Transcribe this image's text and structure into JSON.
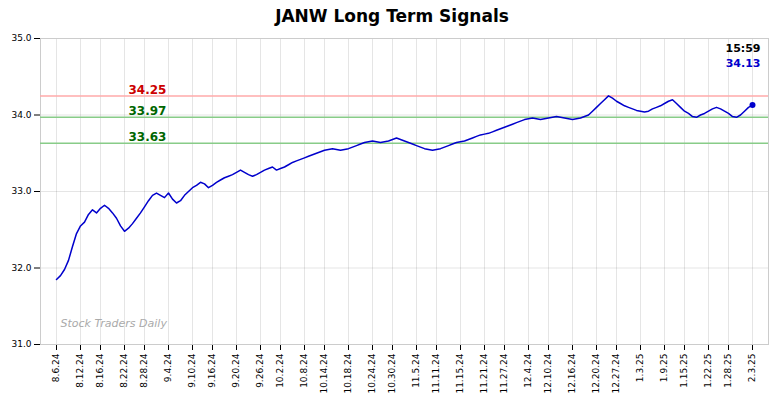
{
  "chart_data": {
    "type": "line",
    "title": "JANW Long Term Signals",
    "color": "#0000cc",
    "ylim": [
      31,
      35
    ],
    "yticks": [
      31,
      32,
      33,
      34,
      35
    ],
    "grid": true,
    "marker": "endpoint",
    "hlines": [
      {
        "y": 34.25,
        "color": "#ffaaaa",
        "text": "34.25",
        "text_color": "#cc0000"
      },
      {
        "y": 33.97,
        "color": "#88cc88",
        "text": "33.97",
        "text_color": "#006600"
      },
      {
        "y": 33.63,
        "color": "#88cc88",
        "text": "33.63",
        "text_color": "#006600"
      }
    ],
    "corner_labels": [
      {
        "text": "15:59",
        "color": "black"
      },
      {
        "text": "34.13",
        "color": "#0000cc"
      }
    ],
    "watermark": {
      "text": "Stock Traders Daily",
      "color": "#aaaaaa"
    },
    "categories": [
      "8.6.24",
      null,
      null,
      null,
      null,
      null,
      "8.12.24",
      null,
      null,
      null,
      null,
      "8.16.24",
      null,
      null,
      null,
      null,
      null,
      "8.22.24",
      null,
      null,
      null,
      null,
      "8.28.24",
      null,
      null,
      null,
      null,
      null,
      "9.4.24",
      null,
      null,
      null,
      null,
      null,
      "9.10.24",
      null,
      null,
      null,
      null,
      "9.16.24",
      null,
      null,
      null,
      null,
      null,
      "9.20.24",
      null,
      null,
      null,
      null,
      null,
      "9.26.24",
      null,
      null,
      null,
      null,
      "10.2.24",
      null,
      null,
      null,
      null,
      null,
      "10.8.24",
      null,
      null,
      null,
      null,
      "10.14.24",
      null,
      null,
      null,
      null,
      null,
      "10.18.24",
      null,
      null,
      null,
      null,
      null,
      "10.24.24",
      null,
      null,
      null,
      null,
      "10.30.24",
      null,
      null,
      null,
      null,
      null,
      "11.5.24",
      null,
      null,
      null,
      null,
      "11.11.24",
      null,
      null,
      null,
      null,
      null,
      "11.15.24",
      null,
      null,
      null,
      null,
      null,
      "11.21.24",
      null,
      null,
      null,
      null,
      "11.27.24",
      null,
      null,
      null,
      null,
      null,
      "12.4.24",
      null,
      null,
      null,
      null,
      "12.10.24",
      null,
      null,
      null,
      null,
      null,
      "12.16.24",
      null,
      null,
      null,
      null,
      null,
      "12.20.24",
      null,
      null,
      null,
      null,
      "12.27.24",
      null,
      null,
      null,
      null,
      null,
      "1.3.25",
      null,
      null,
      null,
      null,
      null,
      "1.9.25",
      null,
      null,
      null,
      null,
      "1.15.25",
      null,
      null,
      null,
      null,
      null,
      "1.22.25",
      null,
      null,
      null,
      null,
      "1.28.25",
      null,
      null,
      null,
      null,
      null,
      "2.3.25"
    ],
    "values": [
      31.85,
      31.9,
      31.98,
      32.1,
      32.28,
      32.45,
      32.55,
      32.6,
      32.7,
      32.76,
      32.72,
      32.78,
      32.82,
      32.78,
      32.72,
      32.65,
      32.55,
      32.48,
      32.52,
      32.58,
      32.65,
      32.72,
      32.8,
      32.88,
      32.95,
      32.98,
      32.95,
      32.92,
      32.98,
      32.9,
      32.85,
      32.88,
      32.95,
      33.0,
      33.05,
      33.08,
      33.12,
      33.1,
      33.05,
      33.08,
      33.12,
      33.15,
      33.18,
      33.2,
      33.22,
      33.25,
      33.28,
      33.25,
      33.22,
      33.2,
      33.22,
      33.25,
      33.28,
      33.3,
      33.32,
      33.28,
      33.3,
      33.32,
      33.35,
      33.38,
      33.4,
      33.42,
      33.44,
      33.46,
      33.48,
      33.5,
      33.52,
      33.54,
      33.55,
      33.56,
      33.55,
      33.54,
      33.55,
      33.56,
      33.58,
      33.6,
      33.62,
      33.64,
      33.65,
      33.66,
      33.65,
      33.64,
      33.65,
      33.66,
      33.68,
      33.7,
      33.68,
      33.66,
      33.64,
      33.62,
      33.6,
      33.58,
      33.56,
      33.55,
      33.54,
      33.55,
      33.56,
      33.58,
      33.6,
      33.62,
      33.64,
      33.65,
      33.66,
      33.68,
      33.7,
      33.72,
      33.74,
      33.75,
      33.76,
      33.78,
      33.8,
      33.82,
      33.84,
      33.86,
      33.88,
      33.9,
      33.92,
      33.94,
      33.95,
      33.96,
      33.95,
      33.94,
      33.95,
      33.96,
      33.97,
      33.98,
      33.97,
      33.96,
      33.95,
      33.94,
      33.95,
      33.96,
      33.98,
      34.0,
      34.05,
      34.1,
      34.15,
      34.2,
      34.25,
      34.22,
      34.18,
      34.15,
      34.12,
      34.1,
      34.08,
      34.06,
      34.05,
      34.04,
      34.05,
      34.08,
      34.1,
      34.12,
      34.15,
      34.18,
      34.2,
      34.15,
      34.1,
      34.05,
      34.02,
      33.98,
      33.97,
      34.0,
      34.02,
      34.05,
      34.08,
      34.1,
      34.08,
      34.05,
      34.02,
      33.98,
      33.97,
      34.0,
      34.05,
      34.1,
      34.13
    ]
  }
}
